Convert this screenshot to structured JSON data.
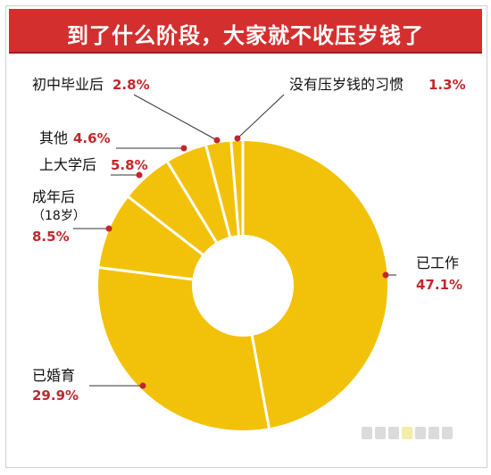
{
  "title": "到了什么阶段，大家就不收压岁钱了",
  "chart_data": {
    "type": "pie",
    "title": "到了什么阶段，大家就不收压岁钱了",
    "slices": [
      {
        "label": "已工作",
        "value": 47.1,
        "display": "47.1%"
      },
      {
        "label": "已婚育",
        "value": 29.9,
        "display": "29.9%"
      },
      {
        "label": "成年后",
        "sublabel": "（18岁）",
        "value": 8.5,
        "display": "8.5%"
      },
      {
        "label": "上大学后",
        "value": 5.8,
        "display": "5.8%"
      },
      {
        "label": "其他",
        "value": 4.6,
        "display": "4.6%"
      },
      {
        "label": "初中毕业后",
        "value": 2.8,
        "display": "2.8%"
      },
      {
        "label": "没有压岁钱的习惯",
        "value": 1.3,
        "display": "1.3%"
      }
    ]
  },
  "colors": {
    "header_bg": "#d32f2f",
    "slice_fill": "#f2c20a",
    "separator": "#ffffff",
    "marker": "#c0282d",
    "percent_text": "#c0282d"
  }
}
